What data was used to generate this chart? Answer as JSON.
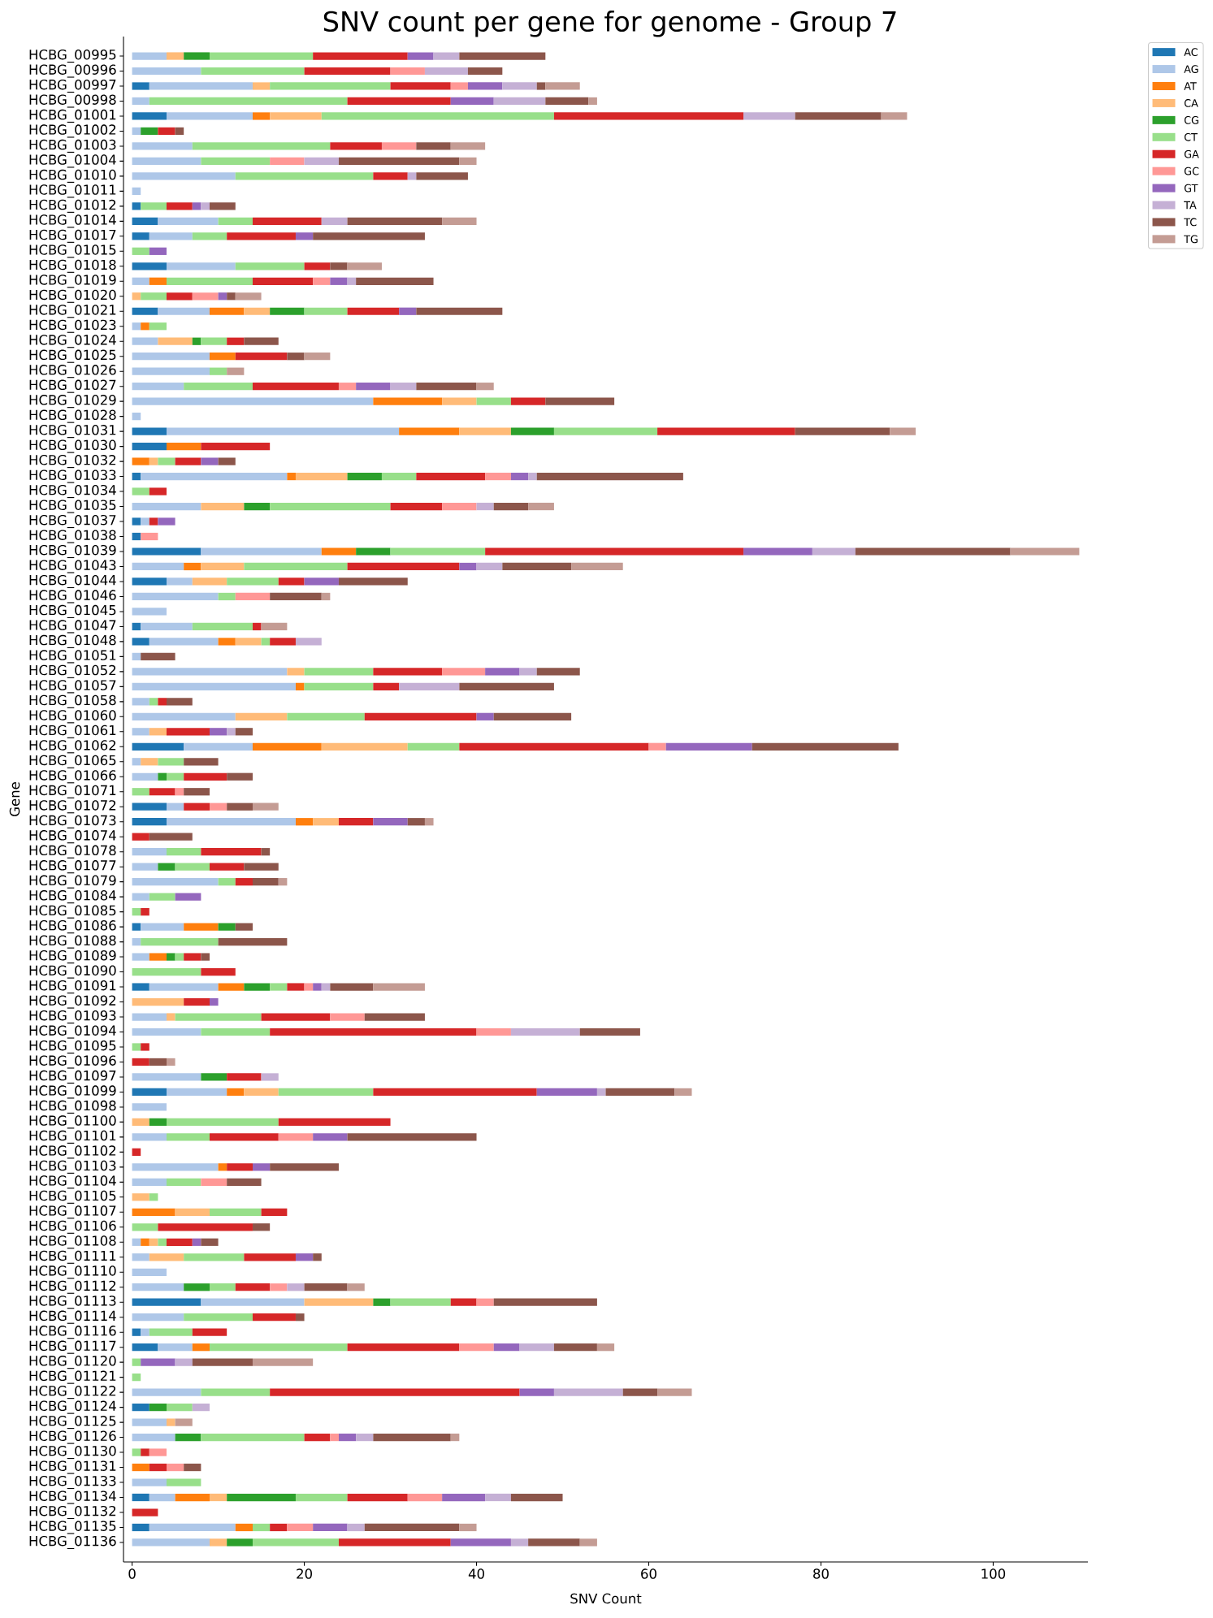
{
  "chart_data": {
    "type": "bar",
    "orientation": "horizontal",
    "stacked": true,
    "title": "SNV count per gene for genome - Group 7",
    "xlabel": "SNV Count",
    "ylabel": "Gene",
    "categories": [
      "HCBG_00995",
      "HCBG_00996",
      "HCBG_00997",
      "HCBG_00998",
      "HCBG_01001",
      "HCBG_01002",
      "HCBG_01003",
      "HCBG_01004",
      "HCBG_01010",
      "HCBG_01011",
      "HCBG_01012",
      "HCBG_01014",
      "HCBG_01017",
      "HCBG_01015",
      "HCBG_01018",
      "HCBG_01019",
      "HCBG_01020",
      "HCBG_01021",
      "HCBG_01023",
      "HCBG_01024",
      "HCBG_01025",
      "HCBG_01026",
      "HCBG_01027",
      "HCBG_01029",
      "HCBG_01028",
      "HCBG_01031",
      "HCBG_01030",
      "HCBG_01032",
      "HCBG_01033",
      "HCBG_01034",
      "HCBG_01035",
      "HCBG_01037",
      "HCBG_01038",
      "HCBG_01039",
      "HCBG_01043",
      "HCBG_01044",
      "HCBG_01046",
      "HCBG_01045",
      "HCBG_01047",
      "HCBG_01048",
      "HCBG_01051",
      "HCBG_01052",
      "HCBG_01057",
      "HCBG_01058",
      "HCBG_01060",
      "HCBG_01061",
      "HCBG_01062",
      "HCBG_01065",
      "HCBG_01066",
      "HCBG_01071",
      "HCBG_01072",
      "HCBG_01073",
      "HCBG_01074",
      "HCBG_01078",
      "HCBG_01077",
      "HCBG_01079",
      "HCBG_01084",
      "HCBG_01085",
      "HCBG_01086",
      "HCBG_01088",
      "HCBG_01089",
      "HCBG_01090",
      "HCBG_01091",
      "HCBG_01092",
      "HCBG_01093",
      "HCBG_01094",
      "HCBG_01095",
      "HCBG_01096",
      "HCBG_01097",
      "HCBG_01099",
      "HCBG_01098",
      "HCBG_01100",
      "HCBG_01101",
      "HCBG_01102",
      "HCBG_01103",
      "HCBG_01104",
      "HCBG_01105",
      "HCBG_01107",
      "HCBG_01106",
      "HCBG_01108",
      "HCBG_01111",
      "HCBG_01110",
      "HCBG_01112",
      "HCBG_01113",
      "HCBG_01114",
      "HCBG_01116",
      "HCBG_01117",
      "HCBG_01120",
      "HCBG_01121",
      "HCBG_01122",
      "HCBG_01124",
      "HCBG_01125",
      "HCBG_01126",
      "HCBG_01130",
      "HCBG_01131",
      "HCBG_01133",
      "HCBG_01134",
      "HCBG_01132",
      "HCBG_01135",
      "HCBG_01136"
    ],
    "series": [
      {
        "name": "AC",
        "color": "#1f77b4",
        "values": [
          null,
          null,
          2,
          null,
          4,
          null,
          null,
          null,
          null,
          null,
          1,
          3,
          2,
          null,
          4,
          null,
          null,
          3,
          null,
          null,
          null,
          null,
          null,
          null,
          null,
          4,
          4,
          null,
          1,
          null,
          null,
          1,
          1,
          8,
          null,
          4,
          null,
          null,
          1,
          2,
          null,
          null,
          null,
          null,
          null,
          null,
          6,
          null,
          null,
          null,
          4,
          4,
          null,
          null,
          null,
          null,
          null,
          null,
          1,
          null,
          null,
          null,
          2,
          null,
          null,
          null,
          null,
          null,
          null,
          4,
          null,
          null,
          null,
          null,
          null,
          null,
          null,
          null,
          null,
          null,
          null,
          null,
          null,
          8,
          null,
          1,
          3,
          null,
          null,
          null,
          2,
          null,
          null,
          null,
          null,
          null,
          2,
          null,
          2,
          null
        ]
      },
      {
        "name": "AG",
        "color": "#aec7e8",
        "values": [
          4,
          8,
          12,
          2,
          10,
          1,
          7,
          8,
          12,
          1,
          null,
          7,
          5,
          null,
          8,
          2,
          null,
          6,
          1,
          3,
          9,
          9,
          6,
          28,
          1,
          27,
          null,
          null,
          17,
          null,
          8,
          1,
          null,
          14,
          6,
          3,
          10,
          4,
          6,
          8,
          1,
          18,
          19,
          2,
          12,
          2,
          8,
          1,
          3,
          null,
          2,
          15,
          null,
          4,
          3,
          10,
          2,
          null,
          5,
          1,
          2,
          null,
          8,
          null,
          4,
          8,
          null,
          null,
          8,
          7,
          4,
          null,
          4,
          null,
          10,
          4,
          null,
          null,
          null,
          1,
          2,
          4,
          6,
          12,
          6,
          1,
          4,
          null,
          null,
          8,
          null,
          4,
          5,
          null,
          null,
          4,
          3,
          null,
          10,
          9
        ]
      },
      {
        "name": "AT",
        "color": "#ff7f0e",
        "values": [
          null,
          null,
          null,
          null,
          2,
          null,
          null,
          null,
          null,
          null,
          null,
          null,
          null,
          null,
          null,
          2,
          null,
          4,
          1,
          null,
          3,
          null,
          null,
          8,
          null,
          7,
          4,
          2,
          1,
          null,
          null,
          null,
          null,
          4,
          2,
          null,
          null,
          null,
          null,
          2,
          null,
          null,
          1,
          null,
          null,
          null,
          8,
          null,
          null,
          null,
          null,
          2,
          null,
          null,
          null,
          null,
          null,
          null,
          4,
          null,
          2,
          null,
          3,
          null,
          null,
          null,
          null,
          null,
          null,
          2,
          null,
          null,
          null,
          null,
          1,
          null,
          null,
          5,
          null,
          1,
          null,
          null,
          null,
          null,
          null,
          null,
          2,
          null,
          null,
          null,
          null,
          null,
          null,
          null,
          2,
          null,
          4,
          null,
          2,
          null
        ]
      },
      {
        "name": "CA",
        "color": "#ffbb78",
        "values": [
          2,
          null,
          2,
          null,
          6,
          null,
          null,
          null,
          null,
          null,
          null,
          null,
          null,
          null,
          null,
          null,
          1,
          3,
          null,
          4,
          null,
          null,
          null,
          4,
          null,
          6,
          null,
          1,
          6,
          null,
          5,
          null,
          null,
          null,
          5,
          4,
          null,
          null,
          null,
          3,
          null,
          2,
          null,
          null,
          6,
          2,
          10,
          2,
          null,
          null,
          null,
          3,
          null,
          null,
          null,
          null,
          null,
          null,
          null,
          null,
          null,
          null,
          null,
          6,
          1,
          null,
          null,
          null,
          null,
          4,
          null,
          2,
          null,
          null,
          null,
          null,
          2,
          4,
          null,
          1,
          4,
          null,
          null,
          8,
          null,
          null,
          null,
          null,
          null,
          null,
          null,
          1,
          null,
          null,
          null,
          null,
          2,
          null,
          null,
          2
        ]
      },
      {
        "name": "CG",
        "color": "#2ca02c",
        "values": [
          3,
          null,
          null,
          null,
          null,
          2,
          null,
          null,
          null,
          null,
          null,
          null,
          null,
          null,
          null,
          null,
          null,
          4,
          null,
          1,
          null,
          null,
          null,
          null,
          null,
          5,
          null,
          null,
          4,
          null,
          3,
          null,
          null,
          4,
          null,
          null,
          null,
          null,
          null,
          null,
          null,
          null,
          null,
          null,
          null,
          null,
          null,
          null,
          1,
          null,
          null,
          null,
          null,
          null,
          2,
          null,
          null,
          null,
          2,
          null,
          1,
          null,
          3,
          null,
          null,
          null,
          null,
          null,
          3,
          null,
          null,
          2,
          null,
          null,
          null,
          null,
          null,
          null,
          null,
          null,
          null,
          null,
          3,
          2,
          null,
          null,
          null,
          null,
          null,
          null,
          2,
          null,
          3,
          null,
          null,
          null,
          8,
          null,
          null,
          3
        ]
      },
      {
        "name": "CT",
        "color": "#98df8a",
        "values": [
          12,
          12,
          14,
          23,
          27,
          null,
          16,
          8,
          16,
          null,
          3,
          4,
          4,
          2,
          8,
          10,
          3,
          5,
          2,
          3,
          null,
          2,
          8,
          4,
          null,
          12,
          null,
          2,
          4,
          2,
          14,
          null,
          null,
          11,
          12,
          6,
          2,
          null,
          7,
          1,
          null,
          8,
          8,
          1,
          9,
          null,
          6,
          3,
          2,
          2,
          null,
          null,
          null,
          4,
          4,
          2,
          3,
          1,
          null,
          9,
          1,
          8,
          2,
          null,
          10,
          8,
          1,
          null,
          null,
          11,
          null,
          13,
          5,
          null,
          null,
          4,
          1,
          6,
          3,
          1,
          7,
          null,
          3,
          7,
          8,
          5,
          16,
          1,
          1,
          8,
          3,
          null,
          12,
          1,
          null,
          4,
          6,
          null,
          2,
          10
        ]
      },
      {
        "name": "GA",
        "color": "#d62728",
        "values": [
          11,
          10,
          7,
          12,
          22,
          2,
          6,
          null,
          4,
          null,
          3,
          8,
          8,
          null,
          3,
          7,
          3,
          6,
          null,
          2,
          6,
          null,
          10,
          4,
          null,
          16,
          8,
          3,
          8,
          2,
          6,
          1,
          null,
          30,
          13,
          3,
          null,
          null,
          1,
          3,
          null,
          8,
          3,
          1,
          13,
          5,
          22,
          null,
          5,
          3,
          3,
          4,
          2,
          7,
          4,
          2,
          null,
          1,
          null,
          null,
          2,
          4,
          2,
          3,
          8,
          24,
          1,
          2,
          4,
          19,
          null,
          13,
          8,
          1,
          3,
          null,
          null,
          3,
          11,
          3,
          6,
          null,
          4,
          3,
          5,
          4,
          13,
          null,
          null,
          29,
          null,
          null,
          3,
          1,
          2,
          null,
          7,
          3,
          2,
          13
        ]
      },
      {
        "name": "GC",
        "color": "#ff9896",
        "values": [
          null,
          4,
          2,
          null,
          null,
          null,
          4,
          4,
          null,
          null,
          null,
          null,
          null,
          null,
          null,
          2,
          3,
          null,
          null,
          null,
          null,
          null,
          2,
          null,
          null,
          null,
          null,
          null,
          3,
          null,
          4,
          null,
          2,
          null,
          null,
          null,
          4,
          null,
          null,
          null,
          null,
          5,
          null,
          null,
          null,
          null,
          2,
          null,
          null,
          1,
          2,
          null,
          null,
          null,
          null,
          null,
          null,
          null,
          null,
          null,
          null,
          null,
          1,
          null,
          4,
          4,
          null,
          null,
          null,
          null,
          null,
          null,
          4,
          null,
          null,
          3,
          null,
          null,
          null,
          null,
          null,
          null,
          2,
          2,
          null,
          null,
          4,
          null,
          null,
          null,
          null,
          null,
          1,
          2,
          2,
          null,
          4,
          null,
          3,
          null
        ]
      },
      {
        "name": "GT",
        "color": "#9467bd",
        "values": [
          3,
          null,
          4,
          5,
          null,
          null,
          null,
          null,
          null,
          null,
          1,
          null,
          2,
          2,
          null,
          2,
          1,
          2,
          null,
          null,
          null,
          null,
          4,
          null,
          null,
          null,
          null,
          2,
          2,
          null,
          null,
          2,
          null,
          8,
          2,
          4,
          null,
          null,
          null,
          null,
          null,
          4,
          null,
          null,
          2,
          2,
          10,
          null,
          null,
          null,
          null,
          4,
          null,
          null,
          null,
          null,
          3,
          null,
          null,
          null,
          null,
          null,
          1,
          1,
          null,
          null,
          null,
          null,
          null,
          7,
          null,
          null,
          4,
          null,
          2,
          null,
          null,
          null,
          null,
          1,
          2,
          null,
          null,
          null,
          null,
          null,
          3,
          4,
          null,
          4,
          null,
          null,
          2,
          null,
          null,
          null,
          5,
          null,
          4,
          7
        ]
      },
      {
        "name": "TA",
        "color": "#c5b0d5",
        "values": [
          3,
          5,
          4,
          6,
          6,
          null,
          null,
          4,
          1,
          null,
          1,
          3,
          null,
          null,
          null,
          1,
          null,
          null,
          null,
          null,
          null,
          null,
          3,
          null,
          null,
          null,
          null,
          null,
          1,
          null,
          2,
          null,
          null,
          5,
          3,
          null,
          null,
          null,
          null,
          3,
          null,
          2,
          7,
          null,
          null,
          1,
          null,
          null,
          null,
          null,
          null,
          null,
          null,
          null,
          null,
          null,
          null,
          null,
          null,
          null,
          null,
          null,
          1,
          null,
          null,
          8,
          null,
          null,
          2,
          1,
          null,
          null,
          null,
          null,
          null,
          null,
          null,
          null,
          null,
          null,
          null,
          null,
          2,
          null,
          null,
          null,
          4,
          2,
          null,
          8,
          2,
          null,
          2,
          null,
          null,
          null,
          3,
          null,
          2,
          2
        ]
      },
      {
        "name": "TC",
        "color": "#8c564b",
        "values": [
          10,
          4,
          1,
          5,
          10,
          1,
          4,
          14,
          6,
          null,
          3,
          11,
          13,
          null,
          2,
          9,
          1,
          10,
          null,
          4,
          2,
          null,
          7,
          8,
          null,
          11,
          null,
          2,
          17,
          null,
          4,
          null,
          null,
          18,
          8,
          8,
          6,
          null,
          null,
          null,
          4,
          5,
          11,
          3,
          9,
          2,
          17,
          4,
          3,
          3,
          3,
          2,
          5,
          1,
          4,
          3,
          null,
          null,
          2,
          8,
          1,
          null,
          5,
          null,
          7,
          7,
          null,
          2,
          null,
          8,
          null,
          null,
          15,
          null,
          8,
          4,
          null,
          null,
          2,
          2,
          1,
          null,
          5,
          12,
          1,
          null,
          5,
          7,
          null,
          4,
          null,
          null,
          9,
          null,
          2,
          null,
          6,
          null,
          11,
          6
        ]
      },
      {
        "name": "TG",
        "color": "#c49c94",
        "values": [
          null,
          null,
          4,
          1,
          3,
          null,
          4,
          2,
          null,
          null,
          null,
          4,
          null,
          null,
          4,
          null,
          3,
          null,
          null,
          null,
          3,
          2,
          2,
          null,
          null,
          3,
          null,
          null,
          null,
          null,
          3,
          null,
          null,
          8,
          6,
          null,
          1,
          null,
          3,
          null,
          null,
          null,
          null,
          null,
          null,
          null,
          null,
          null,
          null,
          null,
          3,
          1,
          null,
          null,
          null,
          1,
          null,
          null,
          null,
          null,
          null,
          null,
          6,
          null,
          null,
          null,
          null,
          1,
          null,
          2,
          null,
          null,
          null,
          null,
          null,
          null,
          null,
          null,
          null,
          null,
          null,
          null,
          2,
          null,
          null,
          null,
          2,
          7,
          null,
          4,
          null,
          2,
          1,
          null,
          null,
          null,
          null,
          null,
          2,
          2
        ]
      }
    ],
    "xlim": [
      -1,
      111
    ],
    "xticks": [
      0,
      20,
      40,
      60,
      80,
      100
    ],
    "legend": "top right"
  }
}
